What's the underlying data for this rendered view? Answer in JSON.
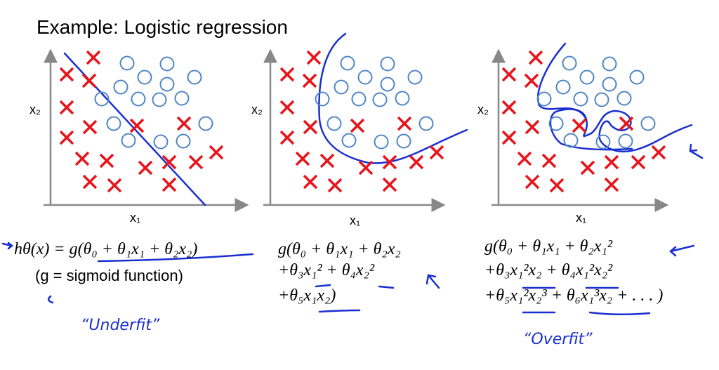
{
  "title": "Example: Logistic regression",
  "panels": [
    {
      "x_label": "x₁",
      "y_label": "x₂",
      "formula": [
        "hθ(x) = g(θ₀ + θ₁x₁ + θ₂x₂)"
      ],
      "note": "(g = sigmoid function)",
      "annotation": "“Underfit”"
    },
    {
      "x_label": "x₁",
      "y_label": "x₂",
      "formula": [
        "g(θ₀ + θ₁x₁ + θ₂x₂",
        "+θ₃x₁² + θ₄x₂²",
        "+θ₅x₁x₂)"
      ]
    },
    {
      "x_label": "x₁",
      "y_label": "x₂",
      "formula": [
        "g(θ₀ + θ₁x₁ + θ₂x₁²",
        "+θ₃x₁²x₂ + θ₄x₁²x₂²",
        "+θ₅x₁²x₂³ + θ₆x₁³x₂ + . . . )"
      ],
      "annotation": "“Overfit”"
    }
  ]
}
